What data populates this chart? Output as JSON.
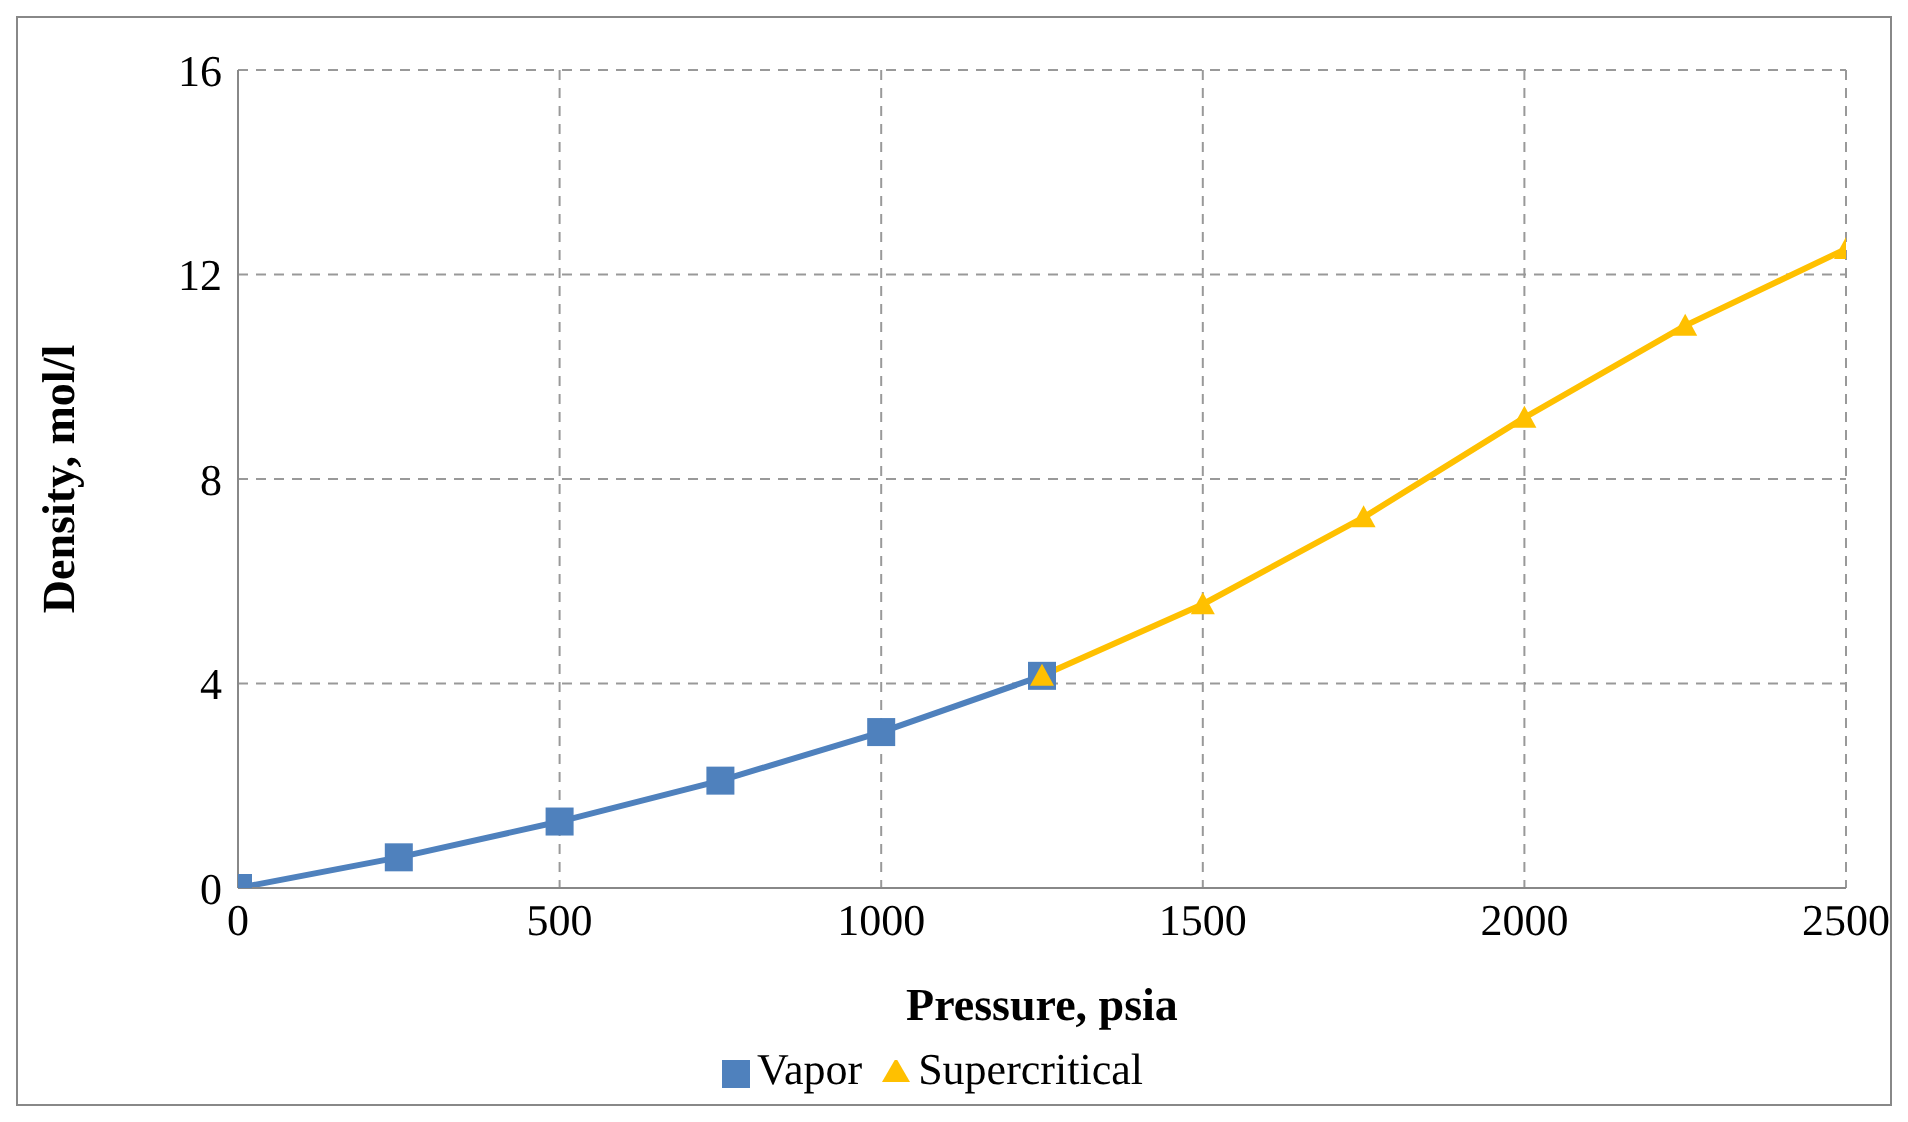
{
  "chart_data": {
    "type": "line",
    "xlabel": "Pressure, psia",
    "ylabel": "Density, mol/l",
    "series": [
      {
        "name": "Vapor",
        "color": "#4f81bd",
        "marker": "square",
        "x": [
          0,
          250,
          500,
          750,
          1000,
          1250
        ],
        "values": [
          0,
          0.6,
          1.3,
          2.1,
          3.05,
          4.15
        ]
      },
      {
        "name": "Supercritical",
        "color": "#ffc000",
        "marker": "triangle",
        "x": [
          1250,
          1500,
          1750,
          2000,
          2250,
          2500
        ],
        "values": [
          4.15,
          5.55,
          7.25,
          9.2,
          11.0,
          12.5
        ]
      }
    ],
    "xlim": [
      0,
      2500
    ],
    "xticks": [
      0,
      500,
      1000,
      1500,
      2000,
      2500
    ],
    "ylim": [
      0,
      16
    ],
    "yticks": [
      0,
      4,
      8,
      12,
      16
    ],
    "grid": true,
    "legend": "bottom",
    "line_style": "solid"
  }
}
